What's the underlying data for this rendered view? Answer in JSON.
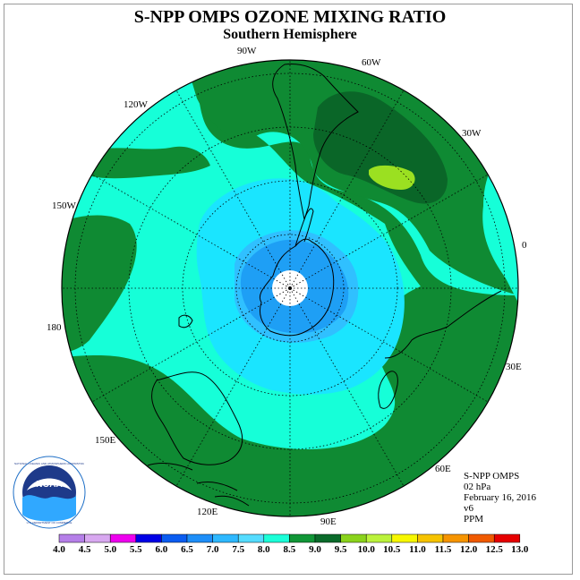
{
  "header": {
    "title": "S-NPP OMPS OZONE MIXING RATIO",
    "subtitle": "Southern Hemisphere"
  },
  "longitude_labels": {
    "lon_90w": "90W",
    "lon_60w": "60W",
    "lon_120w": "120W",
    "lon_30w": "30W",
    "lon_150w": "150W",
    "lon_0": "0",
    "lon_180": "180",
    "lon_30e": "30E",
    "lon_150e": "150E",
    "lon_60e": "60E",
    "lon_120e": "120E",
    "lon_90e": "90E"
  },
  "info": {
    "instrument": "S-NPP OMPS",
    "level": "02 hPa",
    "date": "February 16, 2016",
    "version": "v6",
    "units": "PPM"
  },
  "logo": {
    "text": "NOAA",
    "ring_text": "NATIONAL OCEANIC AND ATMOSPHERIC ADMINISTRATION",
    "ring_bottom": "U.S. DEPARTMENT OF COMMERCE"
  },
  "colorbar": {
    "ticks": [
      "4.0",
      "4.5",
      "5.0",
      "5.5",
      "6.0",
      "6.5",
      "7.0",
      "7.5",
      "8.0",
      "8.5",
      "9.0",
      "9.5",
      "10.0",
      "10.5",
      "11.0",
      "11.5",
      "12.0",
      "12.5",
      "13.0"
    ],
    "colors": [
      "#b57fe8",
      "#d8a8f0",
      "#ee00ee",
      "#0000e6",
      "#0a5cf0",
      "#1e8ef8",
      "#2eb8ff",
      "#55dcff",
      "#1cffd8",
      "#119637",
      "#0a6a2a",
      "#8ad31c",
      "#bbf23c",
      "#f7f700",
      "#f6c300",
      "#f69400",
      "#f05a00",
      "#e60000",
      "#7a4a2a"
    ]
  },
  "colors": {
    "level_7_5": "#1ae5ff",
    "level_8_0": "#16ffd8",
    "level_8_5": "#0f8a33",
    "level_9_0": "#0a6628",
    "level_9_5": "#9be021",
    "level_6_5": "#1e9ff5",
    "level_7_0": "#30c0ff"
  }
}
